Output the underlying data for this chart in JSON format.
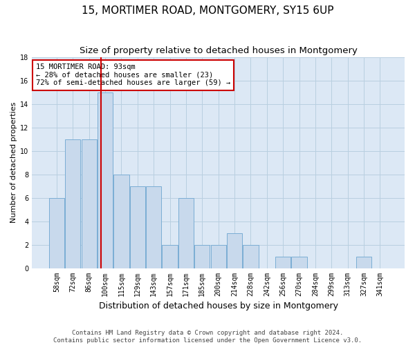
{
  "title": "15, MORTIMER ROAD, MONTGOMERY, SY15 6UP",
  "subtitle": "Size of property relative to detached houses in Montgomery",
  "xlabel": "Distribution of detached houses by size in Montgomery",
  "ylabel": "Number of detached properties",
  "categories": [
    "58sqm",
    "72sqm",
    "86sqm",
    "100sqm",
    "115sqm",
    "129sqm",
    "143sqm",
    "157sqm",
    "171sqm",
    "185sqm",
    "200sqm",
    "214sqm",
    "228sqm",
    "242sqm",
    "256sqm",
    "270sqm",
    "284sqm",
    "299sqm",
    "313sqm",
    "327sqm",
    "341sqm"
  ],
  "values": [
    6,
    11,
    11,
    15,
    8,
    7,
    7,
    2,
    6,
    2,
    2,
    3,
    2,
    0,
    1,
    1,
    0,
    0,
    0,
    1,
    0
  ],
  "bar_color": "#c8d9ec",
  "bar_edge_color": "#7aadd4",
  "property_line_x": 2.72,
  "property_line_color": "#cc0000",
  "annotation_text": "15 MORTIMER ROAD: 93sqm\n← 28% of detached houses are smaller (23)\n72% of semi-detached houses are larger (59) →",
  "annotation_box_color": "#cc0000",
  "ylim": [
    0,
    18
  ],
  "yticks": [
    0,
    2,
    4,
    6,
    8,
    10,
    12,
    14,
    16,
    18
  ],
  "footer_line1": "Contains HM Land Registry data © Crown copyright and database right 2024.",
  "footer_line2": "Contains public sector information licensed under the Open Government Licence v3.0.",
  "bg_color": "#ffffff",
  "plot_bg_color": "#dce8f5",
  "grid_color": "#b8cfe0",
  "title_fontsize": 11,
  "subtitle_fontsize": 9.5,
  "xlabel_fontsize": 9,
  "ylabel_fontsize": 8,
  "tick_fontsize": 7,
  "annotation_fontsize": 7.5,
  "footer_fontsize": 6.5
}
